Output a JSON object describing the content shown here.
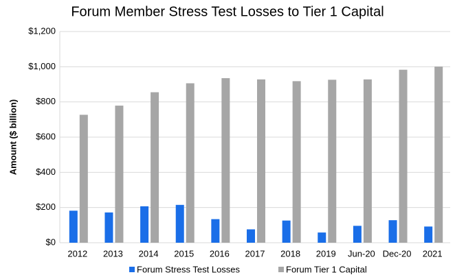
{
  "chart_data": {
    "type": "bar",
    "title": "Forum Member Stress Test Losses to Tier 1 Capital",
    "y_label": "Amount ($ billion)",
    "categories": [
      "2012",
      "2013",
      "2014",
      "2015",
      "2016",
      "2017",
      "2018",
      "2019",
      "Jun-20",
      "Dec-20",
      "2021"
    ],
    "series": [
      {
        "name": "Forum Stress Test Losses",
        "color": "#1a6ee8",
        "values": [
          182,
          172,
          207,
          215,
          134,
          76,
          126,
          58,
          96,
          128,
          92
        ]
      },
      {
        "name": "Forum Tier 1 Capital",
        "color": "#a6a6a6",
        "values": [
          727,
          779,
          855,
          906,
          935,
          928,
          918,
          926,
          928,
          983,
          1001
        ]
      }
    ],
    "ylim": [
      0,
      1200
    ],
    "yticks": [
      {
        "value": 0,
        "label": "$0"
      },
      {
        "value": 200,
        "label": "$200"
      },
      {
        "value": 400,
        "label": "$400"
      },
      {
        "value": 600,
        "label": "$600"
      },
      {
        "value": 800,
        "label": "$800"
      },
      {
        "value": 1000,
        "label": "$1,000"
      },
      {
        "value": 1200,
        "label": "$1,200"
      }
    ],
    "grid": true,
    "legend": "bottom"
  }
}
